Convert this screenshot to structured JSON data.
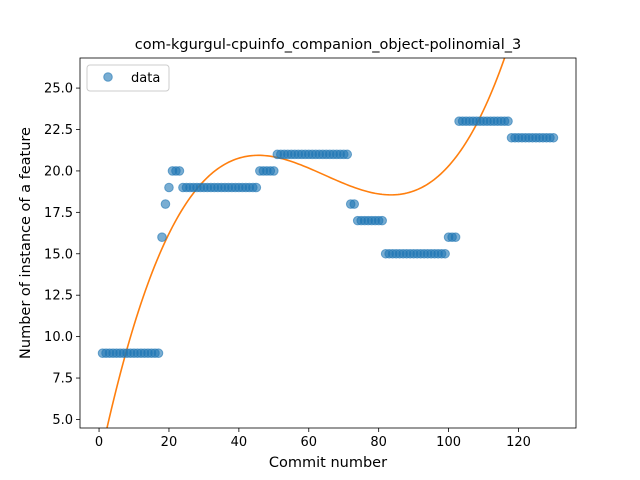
{
  "chart_data": {
    "type": "scatter",
    "title": "com-kgurgul-cpuinfo_companion_object-polinomial_3",
    "xlabel": "Commit number",
    "ylabel": "Number of instance of a feature",
    "xlim": [
      -5.45,
      136.45
    ],
    "ylim": [
      4.485,
      26.815
    ],
    "xticks": [
      0,
      20,
      40,
      60,
      80,
      100,
      120
    ],
    "xtick_labels": [
      "0",
      "20",
      "40",
      "60",
      "80",
      "100",
      "120"
    ],
    "yticks": [
      5.0,
      7.5,
      10.0,
      12.5,
      15.0,
      17.5,
      20.0,
      22.5,
      25.0
    ],
    "ytick_labels": [
      "5.0",
      "7.5",
      "10.0",
      "12.5",
      "15.0",
      "17.5",
      "20.0",
      "22.5",
      "25.0"
    ],
    "grid": false,
    "legend": {
      "placement": "upper-left",
      "entries": [
        "data"
      ]
    },
    "colors": {
      "data": "#1f77b4",
      "fit": "#ff7f0e"
    },
    "series": [
      {
        "name": "data",
        "kind": "scatter",
        "x": [
          1,
          2,
          3,
          4,
          5,
          6,
          7,
          8,
          9,
          10,
          11,
          12,
          13,
          14,
          15,
          16,
          17,
          18,
          19,
          20,
          21,
          22,
          23,
          24,
          25,
          26,
          27,
          28,
          29,
          30,
          31,
          32,
          33,
          34,
          35,
          36,
          37,
          38,
          39,
          40,
          41,
          42,
          43,
          44,
          45,
          46,
          47,
          48,
          49,
          50,
          51,
          52,
          53,
          54,
          55,
          56,
          57,
          58,
          59,
          60,
          61,
          62,
          63,
          64,
          65,
          66,
          67,
          68,
          69,
          70,
          71,
          72,
          73,
          74,
          75,
          76,
          77,
          78,
          79,
          80,
          81,
          82,
          83,
          84,
          85,
          86,
          87,
          88,
          89,
          90,
          91,
          92,
          93,
          94,
          95,
          96,
          97,
          98,
          99,
          100,
          101,
          102,
          103,
          104,
          105,
          106,
          107,
          108,
          109,
          110,
          111,
          112,
          113,
          114,
          115,
          116,
          117,
          118,
          119,
          120,
          121,
          122,
          123,
          124,
          125,
          126,
          127,
          128,
          129,
          130
        ],
        "y": [
          9,
          9,
          9,
          9,
          9,
          9,
          9,
          9,
          9,
          9,
          9,
          9,
          9,
          9,
          9,
          9,
          9,
          16,
          18,
          19,
          20,
          20,
          20,
          19,
          19,
          19,
          19,
          19,
          19,
          19,
          19,
          19,
          19,
          19,
          19,
          19,
          19,
          19,
          19,
          19,
          19,
          19,
          19,
          19,
          19,
          20,
          20,
          20,
          20,
          20,
          21,
          21,
          21,
          21,
          21,
          21,
          21,
          21,
          21,
          21,
          21,
          21,
          21,
          21,
          21,
          21,
          21,
          21,
          21,
          21,
          21,
          18,
          18,
          17,
          17,
          17,
          17,
          17,
          17,
          17,
          17,
          15,
          15,
          15,
          15,
          15,
          15,
          15,
          15,
          15,
          15,
          15,
          15,
          15,
          15,
          15,
          15,
          15,
          15,
          16,
          16,
          16,
          23,
          23,
          23,
          23,
          23,
          23,
          23,
          23,
          23,
          23,
          23,
          23,
          23,
          23,
          23,
          22,
          22,
          22,
          22,
          22,
          22,
          22,
          22,
          22,
          22,
          22,
          22,
          22
        ]
      },
      {
        "name": "",
        "kind": "line",
        "poly_coefficients_descending": [
          8.75e-05,
          -0.016946,
          0.99958,
          2.3
        ]
      }
    ]
  }
}
